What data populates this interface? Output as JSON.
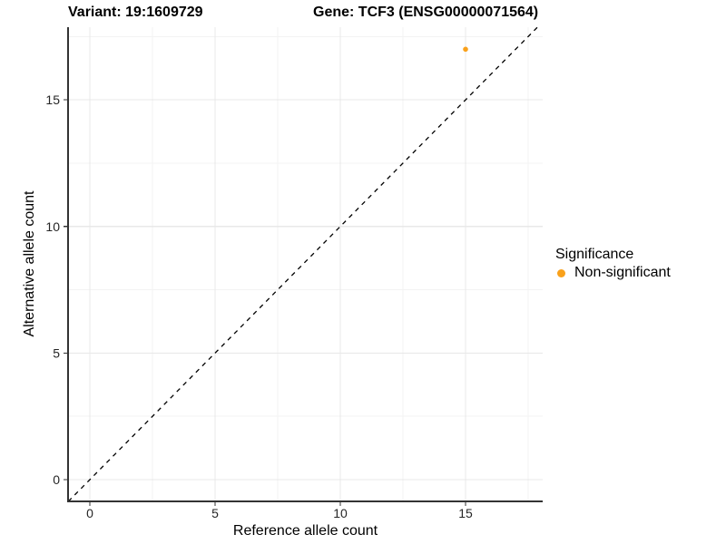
{
  "chart_data": {
    "type": "scatter",
    "title_left": "Variant: 19:1609729",
    "title_right": "Gene: TCF3 (ENSG00000071564)",
    "xlabel": "Reference allele count",
    "ylabel": "Alternative allele count",
    "xlim": [
      -0.87,
      18.08
    ],
    "ylim": [
      -0.86,
      17.87
    ],
    "x_ticks": [
      0,
      5,
      10,
      15
    ],
    "y_ticks": [
      0,
      5,
      10,
      15
    ],
    "x_minor_ticks": [
      2.5,
      7.5,
      12.5,
      17.5
    ],
    "y_minor_ticks": [
      2.5,
      7.5,
      12.5,
      17.5
    ],
    "grid": true,
    "points": [
      {
        "x": 15,
        "y": 17,
        "series": "Non-significant"
      }
    ],
    "reference_line": {
      "type": "identity",
      "slope": 1,
      "intercept": 0,
      "style": "dashed"
    },
    "legend": {
      "title": "Significance",
      "position": "right",
      "items": [
        {
          "label": "Non-significant",
          "color": "#F9A11B",
          "marker": "circle"
        }
      ]
    }
  },
  "colors": {
    "point": "#F9A11B",
    "grid_major": "#E8E8E8",
    "grid_minor": "#F3F3F3",
    "axis_line": "#333333",
    "tick_text": "#262626",
    "reference_line": "#000000",
    "background": "#FFFFFF"
  }
}
